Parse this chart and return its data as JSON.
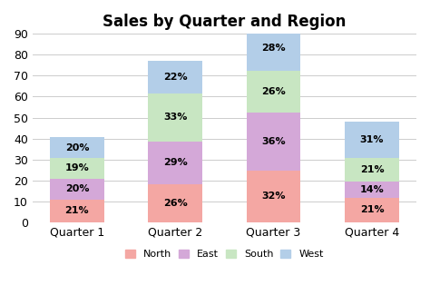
{
  "title": "Sales by Quarter and Region",
  "categories": [
    "Quarter 1",
    "Quarter 2",
    "Quarter 3",
    "Quarter 4"
  ],
  "series": {
    "North": [
      10.71,
      18.2,
      24.64,
      11.55
    ],
    "East": [
      10.2,
      20.3,
      27.72,
      7.7
    ],
    "South": [
      9.69,
      23.1,
      20.02,
      11.55
    ],
    "West": [
      10.2,
      15.4,
      21.56,
      17.05
    ]
  },
  "labels": {
    "North": [
      "21%",
      "26%",
      "32%",
      "21%"
    ],
    "East": [
      "20%",
      "29%",
      "36%",
      "14%"
    ],
    "South": [
      "19%",
      "33%",
      "26%",
      "21%"
    ],
    "West": [
      "20%",
      "22%",
      "28%",
      "31%"
    ]
  },
  "colors": {
    "North": "#F4A7A3",
    "East": "#D4A8D8",
    "South": "#C8E6C2",
    "West": "#B3CEE8"
  },
  "legend_order": [
    "North",
    "East",
    "South",
    "West"
  ],
  "ylim": [
    0,
    90
  ],
  "yticks": [
    0,
    10,
    20,
    30,
    40,
    50,
    60,
    70,
    80,
    90
  ],
  "title_fontsize": 12,
  "tick_fontsize": 9,
  "label_fontsize": 8,
  "legend_fontsize": 8,
  "bar_width": 0.55
}
